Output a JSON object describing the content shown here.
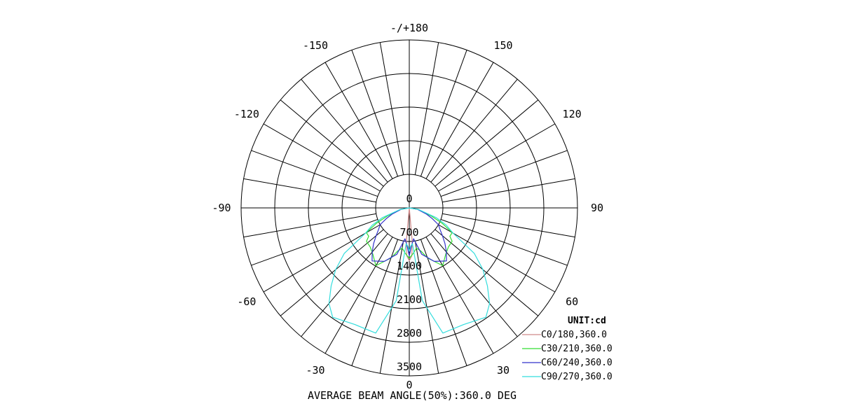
{
  "chart_data": {
    "type": "polar",
    "unit_label": "UNIT:cd",
    "footer": "AVERAGE BEAM ANGLE(50%):360.0 DEG",
    "radial_range": [
      0,
      3500
    ],
    "radial_ticks": [
      {
        "value": 0,
        "label": "0"
      },
      {
        "value": 700,
        "label": "700"
      },
      {
        "value": 1400,
        "label": "1400"
      },
      {
        "value": 2100,
        "label": "2100"
      },
      {
        "value": 2800,
        "label": "2800"
      },
      {
        "value": 3500,
        "label": "3500"
      }
    ],
    "angle_grid_step_deg": 10,
    "angle_labels": [
      {
        "angle": 0,
        "label": "0"
      },
      {
        "angle": 30,
        "label": "30"
      },
      {
        "angle": -30,
        "label": "-30"
      },
      {
        "angle": 60,
        "label": "60"
      },
      {
        "angle": -60,
        "label": "-60"
      },
      {
        "angle": 90,
        "label": "90"
      },
      {
        "angle": -90,
        "label": "-90"
      },
      {
        "angle": 120,
        "label": "120"
      },
      {
        "angle": -120,
        "label": "-120"
      },
      {
        "angle": 150,
        "label": "150"
      },
      {
        "angle": -150,
        "label": "-150"
      },
      {
        "angle": 180,
        "label": "-/+180"
      }
    ],
    "series": [
      {
        "name": "C0/180,360.0",
        "color": "#d08a8a",
        "points": [
          [
            -90,
            0
          ],
          [
            -75,
            0
          ],
          [
            -60,
            0
          ],
          [
            -45,
            0
          ],
          [
            -30,
            0
          ],
          [
            -15,
            0
          ],
          [
            -8,
            0
          ],
          [
            -5,
            700
          ],
          [
            -3,
            1000
          ],
          [
            0,
            1100
          ],
          [
            3,
            1000
          ],
          [
            5,
            700
          ],
          [
            8,
            0
          ],
          [
            15,
            0
          ],
          [
            30,
            0
          ],
          [
            45,
            0
          ],
          [
            60,
            0
          ],
          [
            75,
            0
          ],
          [
            90,
            0
          ]
        ]
      },
      {
        "name": "C30/210,360.0",
        "color": "#33dd33",
        "points": [
          [
            -90,
            0
          ],
          [
            -80,
            180
          ],
          [
            -70,
            480
          ],
          [
            -65,
            750
          ],
          [
            -60,
            1030
          ],
          [
            -55,
            1030
          ],
          [
            -52,
            1130
          ],
          [
            -45,
            1150
          ],
          [
            -38,
            1230
          ],
          [
            -30,
            1390
          ],
          [
            -20,
            1110
          ],
          [
            -15,
            930
          ],
          [
            -10,
            850
          ],
          [
            -5,
            950
          ],
          [
            0,
            1050
          ],
          [
            5,
            950
          ],
          [
            10,
            850
          ],
          [
            15,
            930
          ],
          [
            20,
            1110
          ],
          [
            30,
            1390
          ],
          [
            38,
            1230
          ],
          [
            45,
            1150
          ],
          [
            52,
            1130
          ],
          [
            55,
            1030
          ],
          [
            60,
            1030
          ],
          [
            65,
            750
          ],
          [
            70,
            480
          ],
          [
            80,
            180
          ],
          [
            90,
            0
          ]
        ]
      },
      {
        "name": "C60/240,360.0",
        "color": "#3333cc",
        "points": [
          [
            -90,
            0
          ],
          [
            -80,
            170
          ],
          [
            -70,
            380
          ],
          [
            -65,
            530
          ],
          [
            -60,
            700
          ],
          [
            -55,
            780
          ],
          [
            -50,
            900
          ],
          [
            -45,
            1050
          ],
          [
            -40,
            1200
          ],
          [
            -35,
            1350
          ],
          [
            -25,
            1230
          ],
          [
            -15,
            1000
          ],
          [
            -8,
            650
          ],
          [
            -3,
            800
          ],
          [
            0,
            1000
          ],
          [
            3,
            800
          ],
          [
            8,
            650
          ],
          [
            15,
            1000
          ],
          [
            25,
            1230
          ],
          [
            35,
            1350
          ],
          [
            40,
            1200
          ],
          [
            45,
            1050
          ],
          [
            50,
            900
          ],
          [
            55,
            780
          ],
          [
            60,
            700
          ],
          [
            65,
            530
          ],
          [
            70,
            380
          ],
          [
            80,
            170
          ],
          [
            90,
            0
          ]
        ]
      },
      {
        "name": "C90/270,360.0",
        "color": "#33dddd",
        "points": [
          [
            -90,
            0
          ],
          [
            -80,
            200
          ],
          [
            -70,
            600
          ],
          [
            -65,
            850
          ],
          [
            -60,
            1050
          ],
          [
            -55,
            1650
          ],
          [
            -50,
            2000
          ],
          [
            -45,
            2300
          ],
          [
            -40,
            2600
          ],
          [
            -35,
            2780
          ],
          [
            -25,
            2680
          ],
          [
            -15,
            2700
          ],
          [
            -8,
            1950
          ],
          [
            -5,
            750
          ],
          [
            -2,
            800
          ],
          [
            0,
            900
          ],
          [
            2,
            800
          ],
          [
            5,
            750
          ],
          [
            8,
            1950
          ],
          [
            15,
            2700
          ],
          [
            25,
            2680
          ],
          [
            35,
            2780
          ],
          [
            40,
            2600
          ],
          [
            45,
            2300
          ],
          [
            50,
            2000
          ],
          [
            55,
            1650
          ],
          [
            60,
            1050
          ],
          [
            65,
            850
          ],
          [
            70,
            600
          ],
          [
            80,
            200
          ],
          [
            90,
            0
          ]
        ]
      }
    ]
  }
}
